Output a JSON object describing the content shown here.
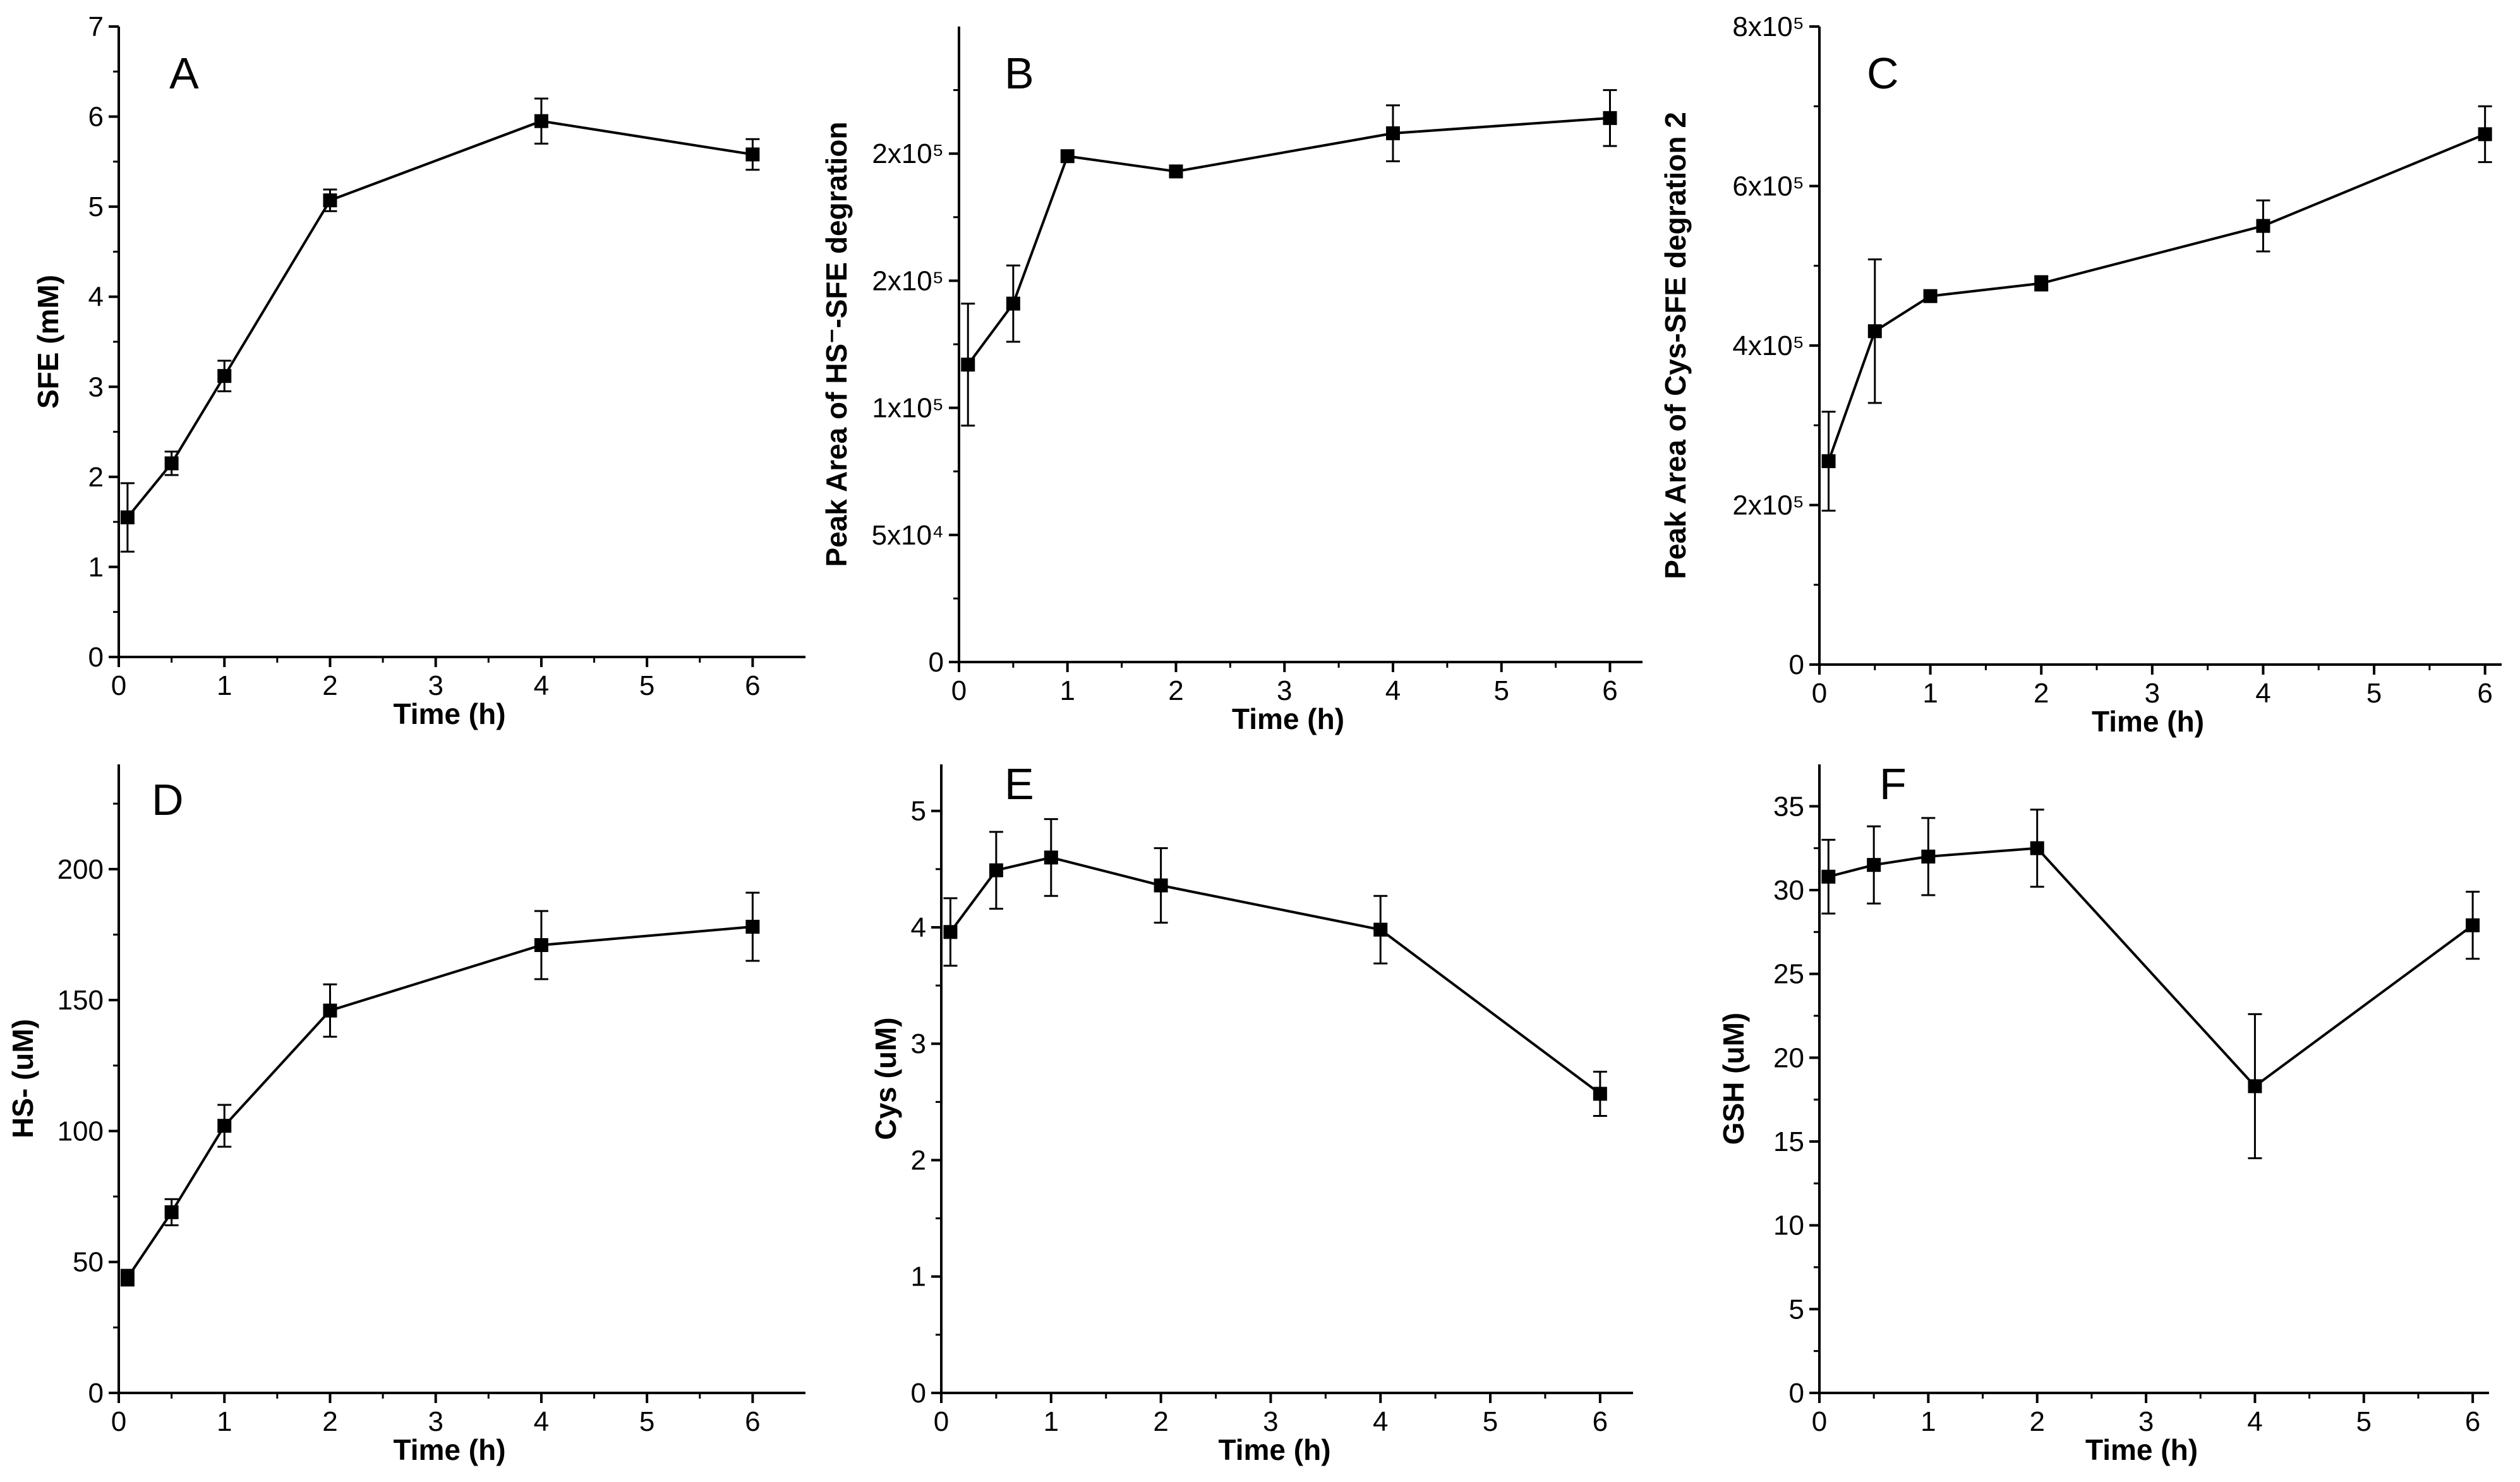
{
  "chart_data": [
    {
      "type": "line",
      "letter": "A",
      "xlabel": "Time (h)",
      "ylabel": "SFE (mM)",
      "xlim": [
        0,
        6.5
      ],
      "ylim": [
        0,
        7
      ],
      "xticks": [
        0,
        1,
        2,
        3,
        4,
        5,
        6
      ],
      "xtick_labels": [
        "0",
        "1",
        "2",
        "3",
        "4",
        "5",
        "6"
      ],
      "yticks": [
        0,
        1,
        2,
        3,
        4,
        5,
        6,
        7
      ],
      "ytick_labels": [
        "0",
        "1",
        "2",
        "3",
        "4",
        "5",
        "6",
        "7"
      ],
      "series": [
        {
          "name": "SFE",
          "x": [
            0.083,
            0.5,
            1,
            2,
            4,
            6
          ],
          "y": [
            1.55,
            2.15,
            3.12,
            5.07,
            5.95,
            5.58
          ],
          "err": [
            0.38,
            0.13,
            0.17,
            0.12,
            0.25,
            0.17
          ]
        }
      ]
    },
    {
      "type": "line",
      "letter": "B",
      "xlabel": "Time (h)",
      "ylabel": "Peak Area of HS⁻-SFE degration",
      "xlim": [
        0,
        6.3
      ],
      "ylim": [
        0,
        250000
      ],
      "xticks": [
        0,
        1,
        2,
        3,
        4,
        5,
        6
      ],
      "xtick_labels": [
        "0",
        "1",
        "2",
        "3",
        "4",
        "5",
        "6"
      ],
      "yticks": [
        0,
        50000,
        100000,
        150000,
        200000
      ],
      "ytick_labels": [
        "0",
        "5x10⁴",
        "1x10⁵",
        "2x10⁵",
        "2x10⁵"
      ],
      "series": [
        {
          "name": "HS⁻-SFE degration",
          "x": [
            0.083,
            0.5,
            1,
            2,
            4,
            6
          ],
          "y": [
            117000,
            141000,
            199000,
            193000,
            208000,
            214000
          ],
          "err": [
            24000,
            15000,
            0,
            0,
            11000,
            11000
          ]
        }
      ]
    },
    {
      "type": "line",
      "letter": "C",
      "xlabel": "Time (h)",
      "ylabel": "Peak Area of Cys-SFE degration 2",
      "xlim": [
        0,
        6.15
      ],
      "ylim": [
        0,
        800000
      ],
      "xticks": [
        0,
        1,
        2,
        3,
        4,
        5,
        6
      ],
      "xtick_labels": [
        "0",
        "1",
        "2",
        "3",
        "4",
        "5",
        "6"
      ],
      "yticks": [
        0,
        200000,
        400000,
        600000,
        800000
      ],
      "ytick_labels": [
        "0",
        "2x10⁵",
        "4x10⁵",
        "6x10⁵",
        "8x10⁵"
      ],
      "series": [
        {
          "name": "Cys-SFE degration 2",
          "x": [
            0.083,
            0.5,
            1,
            2,
            4,
            6
          ],
          "y": [
            255000,
            418000,
            462000,
            478000,
            550000,
            665000
          ],
          "err": [
            62000,
            90000,
            0,
            9000,
            32000,
            35000
          ]
        }
      ]
    },
    {
      "type": "line",
      "letter": "D",
      "xlabel": "Time (h)",
      "ylabel": "HS- (uM)",
      "xlim": [
        0,
        6.5
      ],
      "ylim": [
        0,
        240
      ],
      "xticks": [
        0,
        1,
        2,
        3,
        4,
        5,
        6
      ],
      "xtick_labels": [
        "0",
        "1",
        "2",
        "3",
        "4",
        "5",
        "6"
      ],
      "yticks": [
        0,
        50,
        100,
        150,
        200
      ],
      "ytick_labels": [
        "0",
        "50",
        "100",
        "150",
        "200"
      ],
      "series": [
        {
          "name": "HS-",
          "x": [
            0.083,
            0.5,
            1,
            2,
            4,
            6
          ],
          "y": [
            44,
            69,
            102,
            146,
            171,
            178
          ],
          "err": [
            3,
            5,
            8,
            10,
            13,
            13
          ]
        }
      ]
    },
    {
      "type": "line",
      "letter": "E",
      "xlabel": "Time (h)",
      "ylabel": "Cys (uM)",
      "xlim": [
        0,
        6.3
      ],
      "ylim": [
        0,
        5.4
      ],
      "xticks": [
        0,
        1,
        2,
        3,
        4,
        5,
        6
      ],
      "xtick_labels": [
        "0",
        "1",
        "2",
        "3",
        "4",
        "5",
        "6"
      ],
      "yticks": [
        0,
        1,
        2,
        3,
        4,
        5
      ],
      "ytick_labels": [
        "0",
        "1",
        "2",
        "3",
        "4",
        "5"
      ],
      "series": [
        {
          "name": "Cys",
          "x": [
            0.083,
            0.5,
            1,
            2,
            4,
            6
          ],
          "y": [
            3.96,
            4.49,
            4.6,
            4.36,
            3.98,
            2.57
          ],
          "err": [
            0.29,
            0.33,
            0.33,
            0.32,
            0.29,
            0.19
          ]
        }
      ]
    },
    {
      "type": "line",
      "letter": "F",
      "xlabel": "Time (h)",
      "ylabel": "GSH (uM)",
      "xlim": [
        0,
        6.15
      ],
      "ylim": [
        0,
        37.5
      ],
      "xticks": [
        0,
        1,
        2,
        3,
        4,
        5,
        6
      ],
      "xtick_labels": [
        "0",
        "1",
        "2",
        "3",
        "4",
        "5",
        "6"
      ],
      "yticks": [
        0,
        5,
        10,
        15,
        20,
        25,
        30,
        35
      ],
      "ytick_labels": [
        "0",
        "5",
        "10",
        "15",
        "20",
        "25",
        "30",
        "35"
      ],
      "series": [
        {
          "name": "GSH",
          "x": [
            0.083,
            0.5,
            1,
            2,
            4,
            6
          ],
          "y": [
            30.8,
            31.5,
            32.0,
            32.5,
            18.3,
            27.9
          ],
          "err": [
            2.2,
            2.3,
            2.3,
            2.3,
            4.3,
            2.0
          ]
        }
      ]
    }
  ]
}
